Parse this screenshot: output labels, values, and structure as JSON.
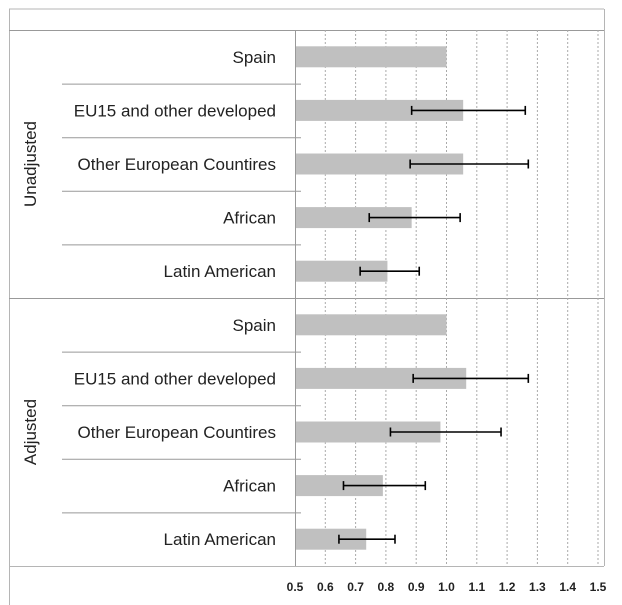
{
  "chart_data": {
    "type": "bar",
    "orientation": "horizontal",
    "title": "",
    "xlabel": "",
    "ylabel": "",
    "xlim": [
      0.5,
      1.5
    ],
    "x_ticks": [
      "0.5",
      "0.6",
      "0.7",
      "0.8",
      "0.9",
      "1.0",
      "1.1",
      "1.2",
      "1.3",
      "1.4",
      "1.5"
    ],
    "grid": "vertical-dotted",
    "legend": "none",
    "bar_color": "#c0c0c0",
    "error_bar_color": "#000000",
    "groups": [
      {
        "label": "Unadjusted",
        "categories": [
          {
            "name": "Spain",
            "value": 1.0
          },
          {
            "name": "EU15 and other developed",
            "value": 1.055,
            "ci_low": 0.885,
            "ci_high": 1.26
          },
          {
            "name": "Other European Countires",
            "value": 1.055,
            "ci_low": 0.88,
            "ci_high": 1.27
          },
          {
            "name": "African",
            "value": 0.885,
            "ci_low": 0.745,
            "ci_high": 1.045
          },
          {
            "name": "Latin American",
            "value": 0.805,
            "ci_low": 0.715,
            "ci_high": 0.91
          }
        ]
      },
      {
        "label": "Adjusted",
        "categories": [
          {
            "name": "Spain",
            "value": 1.0
          },
          {
            "name": "EU15 and other developed",
            "value": 1.065,
            "ci_low": 0.89,
            "ci_high": 1.27
          },
          {
            "name": "Other European Countires",
            "value": 0.98,
            "ci_low": 0.815,
            "ci_high": 1.18
          },
          {
            "name": "African",
            "value": 0.79,
            "ci_low": 0.66,
            "ci_high": 0.93
          },
          {
            "name": "Latin American",
            "value": 0.735,
            "ci_low": 0.645,
            "ci_high": 0.83
          }
        ]
      }
    ]
  }
}
